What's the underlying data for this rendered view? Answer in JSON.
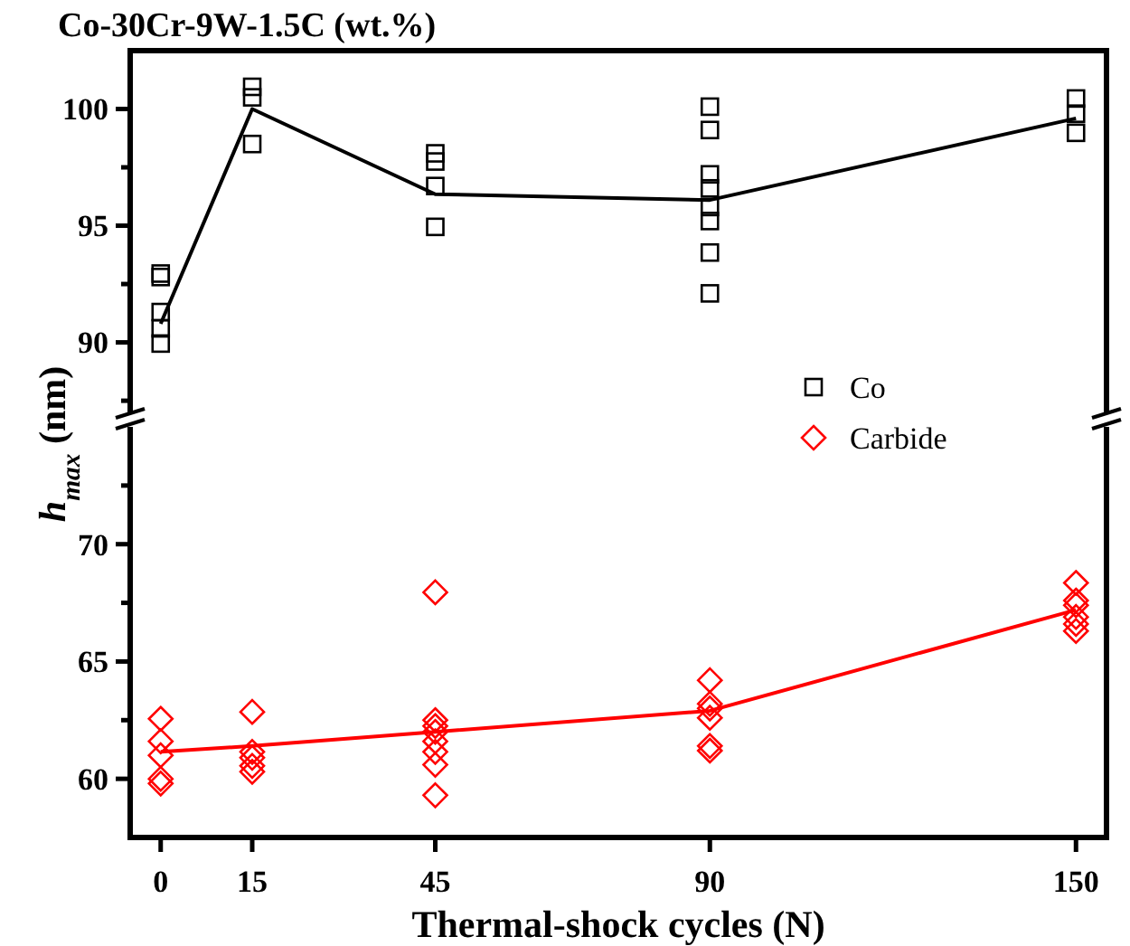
{
  "chart_data": [
    {
      "type": "scatter",
      "title": "Co-30Cr-9W-1.5C (wt.%)",
      "ylabel": "h$_{max}$ (nm)",
      "xlim": [
        -5,
        155
      ],
      "ylim": [
        87,
        102.5
      ],
      "yticks": [
        {
          "value": 87.5,
          "label": null
        },
        90,
        {
          "value": 92.5,
          "label": null
        },
        95,
        {
          "value": 97.5,
          "label": null
        },
        100
      ],
      "tick_labels": "y",
      "grid": false,
      "legend": "bottom right",
      "series": [
        {
          "name": "Co",
          "marker": "square",
          "color": "#000000",
          "x": [
            0,
            0,
            0,
            0,
            0,
            15,
            15,
            15,
            45,
            45,
            45,
            45,
            90,
            90,
            90,
            90,
            90,
            90,
            90,
            90,
            150,
            150,
            150
          ],
          "values": [
            92.95,
            92.8,
            91.3,
            90.6,
            89.95,
            100.95,
            100.5,
            98.5,
            98.1,
            97.75,
            96.7,
            94.95,
            100.1,
            99.1,
            97.2,
            96.6,
            95.8,
            95.2,
            93.85,
            92.1,
            100.45,
            99.8,
            98.98
          ]
        },
        {
          "type": "line",
          "marker": "none",
          "line_style": "solid",
          "color": "#000000",
          "x": [
            0,
            15,
            45,
            90,
            150
          ],
          "values": [
            90.8,
            100,
            96.35,
            96.1,
            99.6
          ]
        }
      ]
    },
    {
      "type": "scatter",
      "xlabel": "Thermal-shock cycles (N)",
      "xlim": [
        -5,
        155
      ],
      "xticks": [
        0,
        15,
        45,
        90,
        150
      ],
      "ylim": [
        57.5,
        75
      ],
      "yticks": [
        60,
        {
          "value": 62.5,
          "label": null
        },
        65,
        {
          "value": 67.5,
          "label": null
        },
        70,
        {
          "value": 72.5,
          "label": null
        }
      ],
      "grid": false,
      "legend": "top right",
      "series": [
        {
          "name": "Carbide",
          "marker": "diamond",
          "color": "#ff0000",
          "x": [
            0,
            0,
            0,
            0,
            0,
            15,
            15,
            15,
            15,
            15,
            45,
            45,
            45,
            45,
            45,
            45,
            45,
            45,
            90,
            90,
            90,
            90,
            90,
            90,
            150,
            150,
            150,
            150,
            150,
            150
          ],
          "values": [
            62.56,
            61.6,
            61.0,
            60.0,
            59.8,
            62.85,
            61.15,
            60.9,
            60.55,
            60.3,
            67.95,
            62.5,
            62.25,
            62.0,
            61.6,
            61.15,
            60.6,
            59.3,
            64.2,
            63.2,
            63.0,
            62.6,
            61.4,
            61.2,
            68.35,
            67.6,
            67.4,
            66.9,
            66.6,
            66.3
          ]
        },
        {
          "type": "line",
          "marker": "none",
          "line_style": "solid",
          "color": "#ff0000",
          "x": [
            0,
            15,
            45,
            90,
            150
          ],
          "values": [
            61.15,
            61.4,
            62.0,
            62.9,
            67.2
          ]
        }
      ]
    }
  ]
}
